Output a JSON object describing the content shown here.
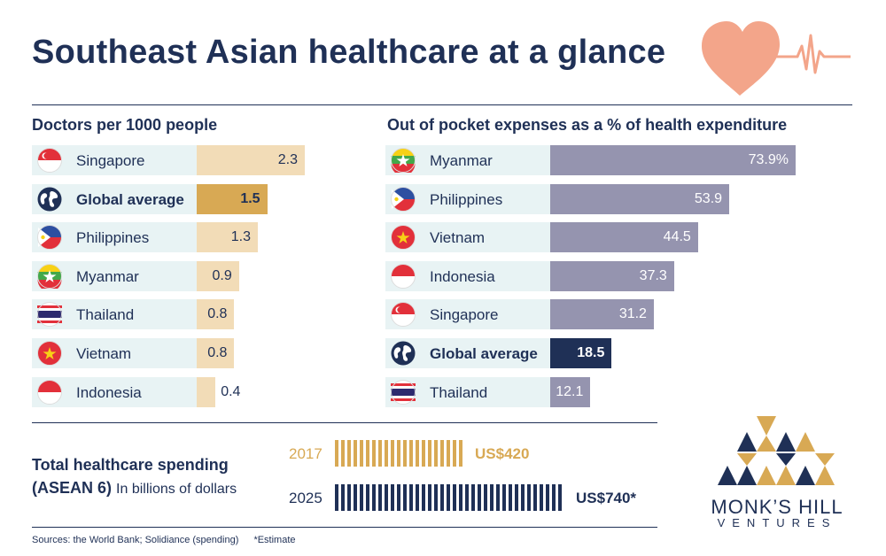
{
  "title": "Southeast Asian healthcare at a glance",
  "colors": {
    "navy": "#1f3056",
    "gold": "#d8a954",
    "light_gold": "#f2dcb7",
    "gray_purple": "#9594af",
    "label_bg": "#e8f3f4",
    "heart": "#f3a58a"
  },
  "chart_data": [
    {
      "type": "bar",
      "title": "Doctors per 1000 people",
      "categories": [
        "Singapore",
        "Global average",
        "Philippines",
        "Myanmar",
        "Thailand",
        "Vietnam",
        "Indonesia"
      ],
      "values": [
        2.3,
        1.5,
        1.3,
        0.9,
        0.8,
        0.8,
        0.4
      ],
      "labels": [
        "2.3",
        "1.5",
        "1.3",
        "0.9",
        "0.8",
        "0.8",
        "0.4"
      ],
      "highlight": "Global average",
      "flags": [
        "singapore-flag-icon",
        "globe-icon",
        "philippines-flag-icon",
        "myanmar-flag-icon",
        "thailand-flag-icon",
        "vietnam-flag-icon",
        "indonesia-flag-icon"
      ]
    },
    {
      "type": "bar",
      "title": "Out of pocket expenses as a % of health expenditure",
      "categories": [
        "Myanmar",
        "Philippines",
        "Vietnam",
        "Indonesia",
        "Singapore",
        "Global average",
        "Thailand"
      ],
      "values": [
        73.9,
        53.9,
        44.5,
        37.3,
        31.2,
        18.5,
        12.1
      ],
      "labels": [
        "73.9%",
        "53.9",
        "44.5",
        "37.3",
        "31.2",
        "18.5",
        "12.1"
      ],
      "highlight": "Global average",
      "flags": [
        "myanmar-flag-icon",
        "philippines-flag-icon",
        "vietnam-flag-icon",
        "indonesia-flag-icon",
        "singapore-flag-icon",
        "globe-icon",
        "thailand-flag-icon"
      ]
    },
    {
      "type": "bar",
      "title": "Total healthcare spending (ASEAN 6)",
      "unit": "In billions of dollars",
      "categories": [
        "2017",
        "2025"
      ],
      "values": [
        420,
        740
      ],
      "labels": [
        "US$420",
        "US$740*"
      ]
    }
  ],
  "spending": {
    "title": "Total healthcare spending",
    "title2": "(ASEAN 6)",
    "unit": "In billions of dollars"
  },
  "sources": "Sources: the World Bank; Solidiance (spending)",
  "estimate_note": "*Estimate",
  "logo": {
    "name": "MONK’S HILL",
    "sub": "VENTURES"
  }
}
